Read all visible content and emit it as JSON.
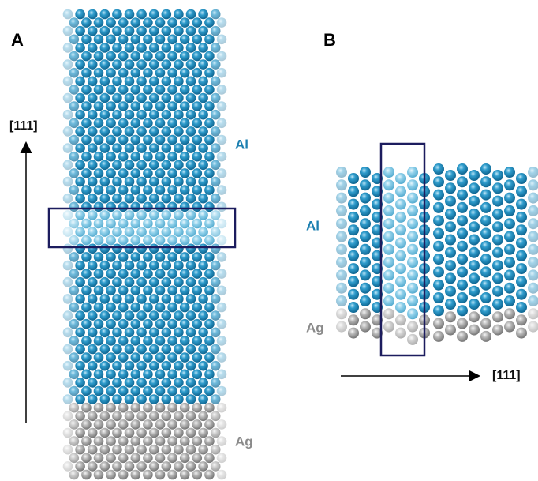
{
  "panels": [
    {
      "label": "A",
      "direction": "[111]",
      "top_layer": "Al",
      "bottom_layer": "Ag"
    },
    {
      "label": "B",
      "direction": "[111]",
      "top_layer": "Al",
      "bottom_layer": "Ag"
    }
  ]
}
